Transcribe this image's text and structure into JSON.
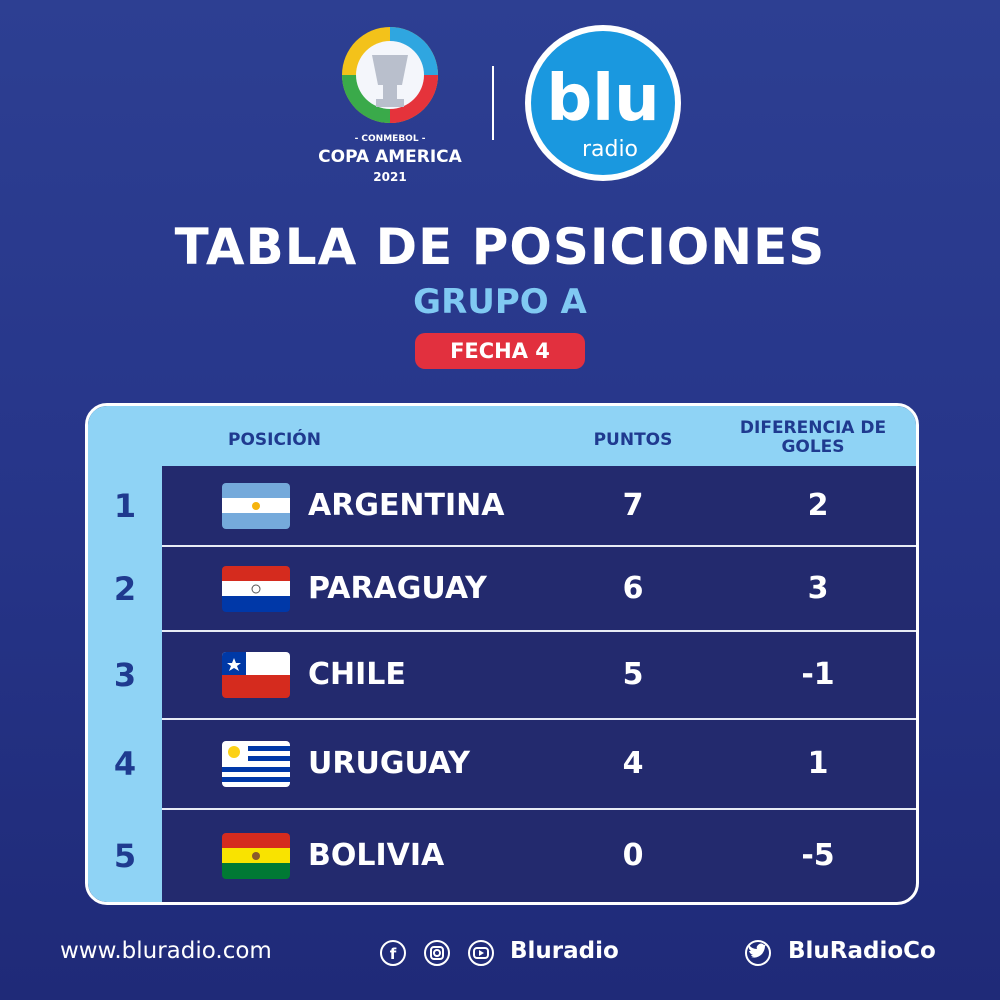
{
  "logos": {
    "copa": {
      "org": "- CONMEBOL -",
      "name": "COPA AMERICA",
      "year": "2021"
    },
    "blu": {
      "name": "blu",
      "sub": "radio"
    }
  },
  "header": {
    "title": "TABLA DE POSICIONES",
    "subtitle": "GRUPO A",
    "badge": "FECHA 4"
  },
  "table": {
    "columns": [
      "POSICIÓN",
      "PUNTOS",
      "DIFERENCIA DE GOLES"
    ],
    "rows": [
      {
        "pos": 1,
        "team": "ARGENTINA",
        "pts": 7,
        "dg": 2
      },
      {
        "pos": 2,
        "team": "PARAGUAY",
        "pts": 6,
        "dg": 3
      },
      {
        "pos": 3,
        "team": "CHILE",
        "pts": 5,
        "dg": -1
      },
      {
        "pos": 4,
        "team": "URUGUAY",
        "pts": 4,
        "dg": 1
      },
      {
        "pos": 5,
        "team": "BOLIVIA",
        "pts": 0,
        "dg": -5
      }
    ]
  },
  "footer": {
    "website": "www.bluradio.com",
    "social": "Bluradio",
    "twitter": "BluRadioCo"
  }
}
